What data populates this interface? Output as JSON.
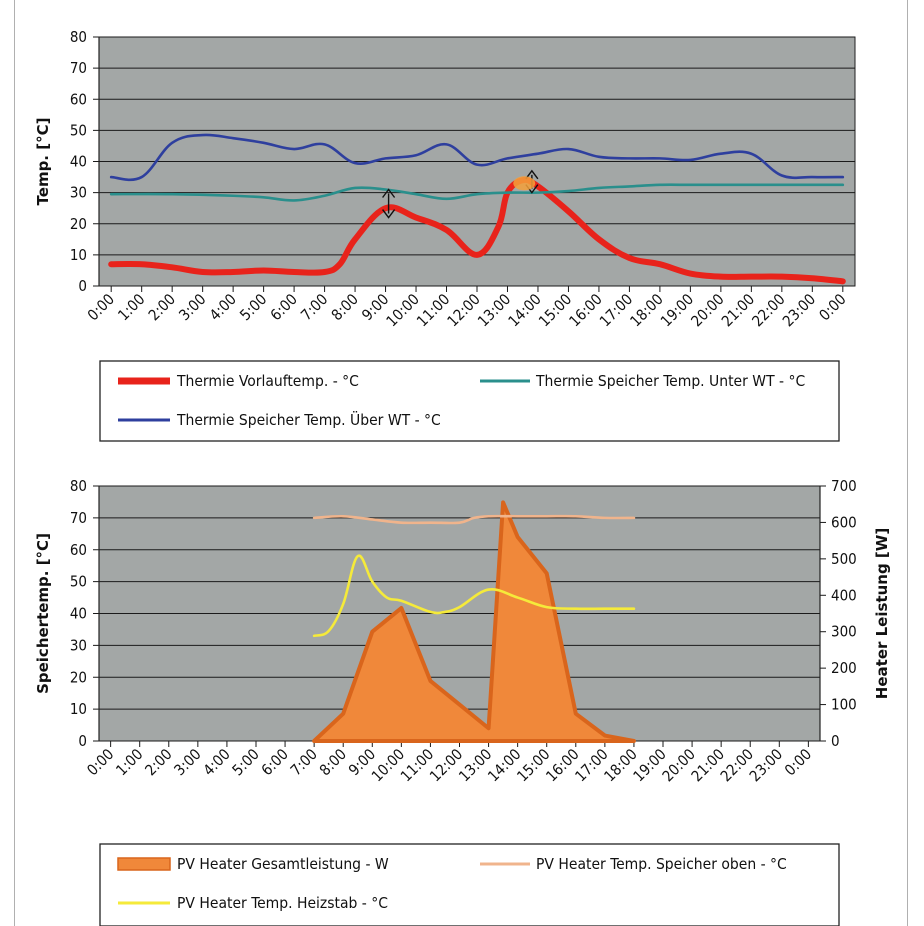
{
  "chart_data": [
    {
      "type": "line",
      "ylabel": "Temp. [°C]",
      "ylim": [
        0,
        80
      ],
      "yticks": [
        0,
        10,
        20,
        30,
        40,
        50,
        60,
        70,
        80
      ],
      "grid": true,
      "categories": [
        "0:00",
        "1:00",
        "2:00",
        "3:00",
        "4:00",
        "5:00",
        "6:00",
        "7:00",
        "8:00",
        "9:00",
        "10:00",
        "11:00",
        "12:00",
        "13:00",
        "14:00",
        "15:00",
        "16:00",
        "17:00",
        "18:00",
        "19:00",
        "20:00",
        "21:00",
        "22:00",
        "23:00",
        "0:00"
      ],
      "series": [
        {
          "name": "Thermie Vorlauftemp. - °C",
          "color": "#e8231b",
          "x": [
            0,
            1,
            2,
            3,
            4,
            5,
            6,
            7,
            7.5,
            8,
            9,
            10,
            11,
            12,
            12.7,
            13,
            13.5,
            14,
            15,
            16,
            17,
            18,
            19,
            20,
            21,
            22,
            23,
            24
          ],
          "y": [
            7,
            7,
            6,
            4.5,
            4.5,
            5,
            4.5,
            4.5,
            7,
            15,
            25,
            22,
            18,
            10,
            19,
            30,
            34,
            32,
            24,
            15,
            9,
            7,
            4,
            3,
            3,
            3,
            2.5,
            1.5
          ]
        },
        {
          "name": "Thermie Speicher Temp. Unter WT - °C",
          "color": "#2a8f8c",
          "x": [
            0,
            2,
            4,
            5,
            6,
            7,
            8,
            9,
            10,
            11,
            12,
            13,
            14,
            15,
            16,
            17,
            18,
            19,
            20,
            21,
            22,
            23,
            24
          ],
          "y": [
            29.5,
            29.5,
            29,
            28.5,
            27.5,
            29,
            31.5,
            31,
            29.5,
            28,
            29.5,
            30,
            30,
            30.5,
            31.5,
            32,
            32.5,
            32.5,
            32.5,
            32.5,
            32.5,
            32.5,
            32.5
          ]
        },
        {
          "name": "Thermie Speicher Temp. Über WT - °C",
          "color": "#2e3f9e",
          "x": [
            0,
            1,
            2,
            3,
            4,
            5,
            6,
            7,
            8,
            9,
            10,
            11,
            12,
            13,
            14,
            15,
            16,
            17,
            18,
            19,
            20,
            21,
            22,
            23,
            24
          ],
          "y": [
            35,
            35,
            46,
            48.5,
            47.5,
            46,
            44,
            45.5,
            39.5,
            41,
            42,
            45.5,
            39,
            41,
            42.5,
            44,
            41.5,
            41,
            41,
            40.5,
            42.5,
            42.5,
            35.5,
            35,
            35
          ]
        }
      ]
    },
    {
      "type": "area",
      "ylabel": "Speichertemp. [°C]",
      "ylim": [
        0,
        80
      ],
      "yticks": [
        0,
        10,
        20,
        30,
        40,
        50,
        60,
        70,
        80
      ],
      "y2label": "Heater Leistung [W]",
      "y2lim": [
        0,
        700
      ],
      "y2ticks": [
        0,
        100,
        200,
        300,
        400,
        500,
        600,
        700
      ],
      "grid": true,
      "categories": [
        "0:00",
        "1:00",
        "2:00",
        "3:00",
        "4:00",
        "5:00",
        "6:00",
        "7:00",
        "8:00",
        "9:00",
        "10:00",
        "11:00",
        "12:00",
        "13:00",
        "14:00",
        "15:00",
        "16:00",
        "17:00",
        "18:00",
        "19:00",
        "20:00",
        "21:00",
        "22:00",
        "23:00",
        "0:00"
      ],
      "series": [
        {
          "name": "PV Heater Gesamtleistung - W",
          "color": "#f0883a",
          "axis": "right",
          "kind": "area",
          "x": [
            7,
            8,
            9,
            10,
            11,
            12,
            13,
            13.5,
            14,
            15,
            16,
            17,
            18
          ],
          "y": [
            0,
            75,
            300,
            365,
            165,
            100,
            35,
            655,
            560,
            460,
            75,
            15,
            0
          ]
        },
        {
          "name": "PV Heater Temp. Speicher oben - °C",
          "color": "#f0b48c",
          "axis": "left",
          "kind": "line",
          "x": [
            7,
            8,
            9,
            10,
            11,
            12,
            12.5,
            13,
            14,
            15,
            16,
            17,
            18
          ],
          "y": [
            70,
            70.5,
            69.5,
            68.5,
            68.5,
            68.5,
            70,
            70.5,
            70.5,
            70.5,
            70.5,
            70,
            70
          ]
        },
        {
          "name": "PV Heater Temp. Heizstab - °C",
          "color": "#f5ea3a",
          "axis": "left",
          "kind": "line",
          "x": [
            7,
            7.5,
            8,
            8.5,
            9,
            9.5,
            10,
            11,
            11.5,
            12,
            13,
            14,
            15,
            16,
            17,
            18
          ],
          "y": [
            33,
            34.5,
            43,
            58,
            50,
            45,
            44,
            40.5,
            40.5,
            42,
            47.5,
            45,
            42,
            41.5,
            41.5,
            41.5
          ]
        }
      ]
    }
  ],
  "legend1": {
    "vorlauf": "Thermie Vorlauftemp. - °C",
    "unter": "Thermie Speicher Temp. Unter WT - °C",
    "ueber": "Thermie Speicher Temp. Über WT - °C"
  },
  "legend2": {
    "gesamt": "PV Heater Gesamtleistung - W",
    "oben": "PV Heater Temp. Speicher oben - °C",
    "heizstab": "PV Heater Temp. Heizstab - °C"
  },
  "colors": {
    "plot_bg": "#a3a7a6",
    "grid": "#1a1a1a",
    "frame": "#222222"
  }
}
